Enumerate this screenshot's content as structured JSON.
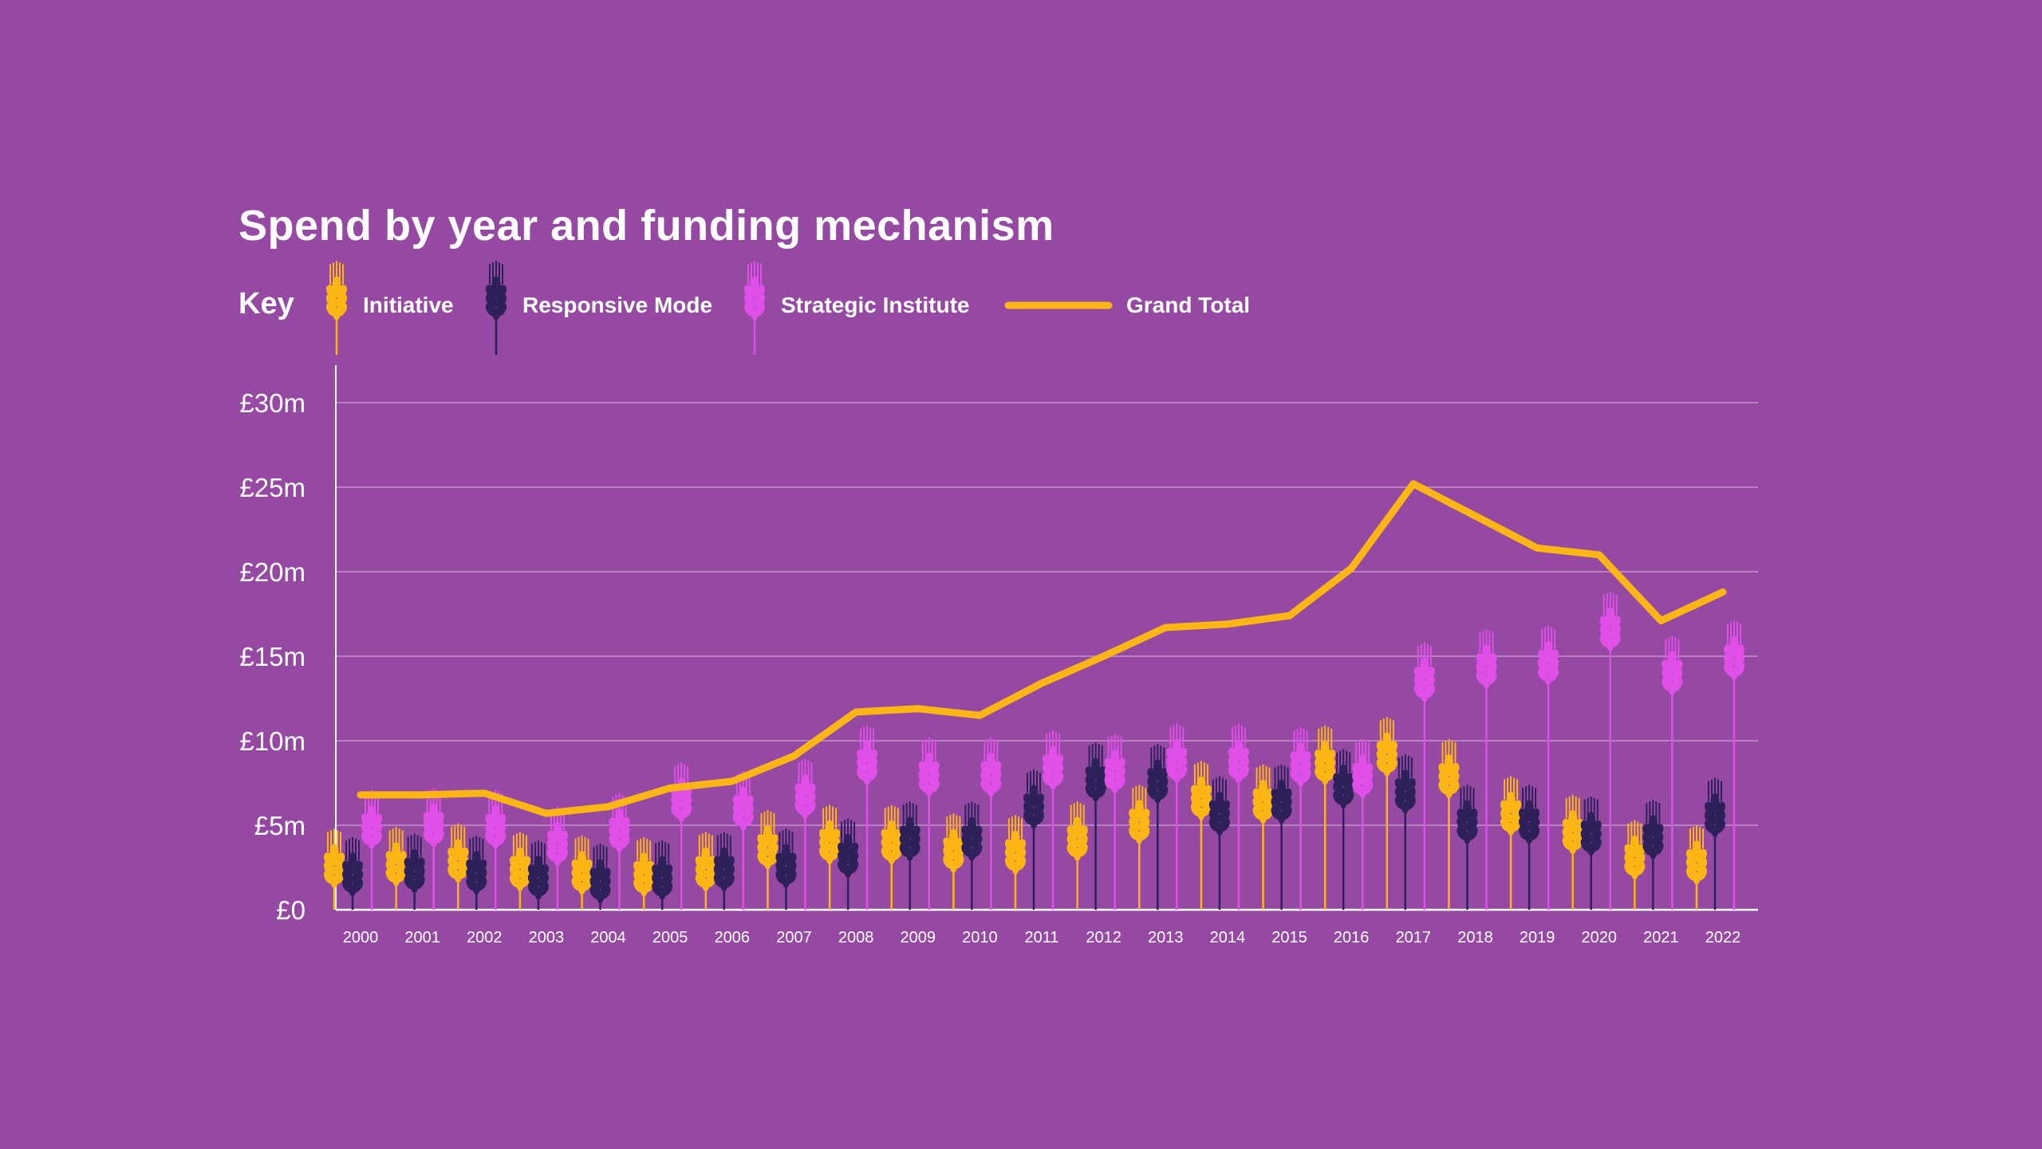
{
  "chart_data": {
    "type": "line",
    "title": "Spend by year and funding mechanism",
    "legend_title": "Key",
    "legend_placement": "top-left",
    "grid": true,
    "ylim": [
      0,
      30
    ],
    "ytick_labels": [
      "£0",
      "£5m",
      "£10m",
      "£15m",
      "£20m",
      "£25m",
      "£30m"
    ],
    "yticks": [
      0,
      5,
      10,
      15,
      20,
      25,
      30
    ],
    "unit": "£m",
    "categories": [
      "2000",
      "2001",
      "2002",
      "2003",
      "2004",
      "2005",
      "2006",
      "2007",
      "2008",
      "2009",
      "2010",
      "2011",
      "2012",
      "2013",
      "2014",
      "2015",
      "2016",
      "2017",
      "2018",
      "2019",
      "2020",
      "2021",
      "2022"
    ],
    "series": [
      {
        "name": "Initiative",
        "mark": "wheat-pictogram",
        "color": "#fbb614",
        "values": [
          4.2,
          4.3,
          4.5,
          4.0,
          3.8,
          3.7,
          4.0,
          5.3,
          5.6,
          5.6,
          5.1,
          5.0,
          5.8,
          6.8,
          8.2,
          8.0,
          10.3,
          10.8,
          9.5,
          7.3,
          6.2,
          4.7,
          4.4
        ]
      },
      {
        "name": "Responsive Mode",
        "mark": "wheat-pictogram",
        "color": "#2e2159",
        "values": [
          3.7,
          3.9,
          3.8,
          3.5,
          3.3,
          3.5,
          4.0,
          4.2,
          4.8,
          5.8,
          5.8,
          7.7,
          9.3,
          9.2,
          7.3,
          8.0,
          8.9,
          8.6,
          6.8,
          6.8,
          6.1,
          5.9,
          7.2
        ]
      },
      {
        "name": "Strategic Institute",
        "mark": "wheat-pictogram",
        "color": "#e04fe8",
        "values": [
          6.5,
          6.6,
          6.5,
          5.5,
          6.3,
          8.1,
          7.6,
          8.3,
          10.3,
          9.6,
          9.6,
          10.0,
          9.8,
          10.4,
          10.4,
          10.2,
          9.5,
          15.2,
          16.0,
          16.2,
          18.2,
          15.6,
          16.5
        ]
      },
      {
        "name": "Grand Total",
        "mark": "line",
        "color": "#fbb614",
        "values": [
          6.8,
          6.8,
          6.9,
          5.7,
          6.1,
          7.2,
          7.6,
          9.1,
          11.7,
          11.9,
          11.5,
          13.4,
          15.0,
          16.7,
          16.9,
          17.4,
          20.2,
          25.2,
          23.3,
          21.4,
          21.0,
          17.1,
          18.8
        ]
      }
    ]
  },
  "colors": {
    "background": "#9649a3",
    "grid": "#c592d0",
    "axis": "#ffffff"
  }
}
